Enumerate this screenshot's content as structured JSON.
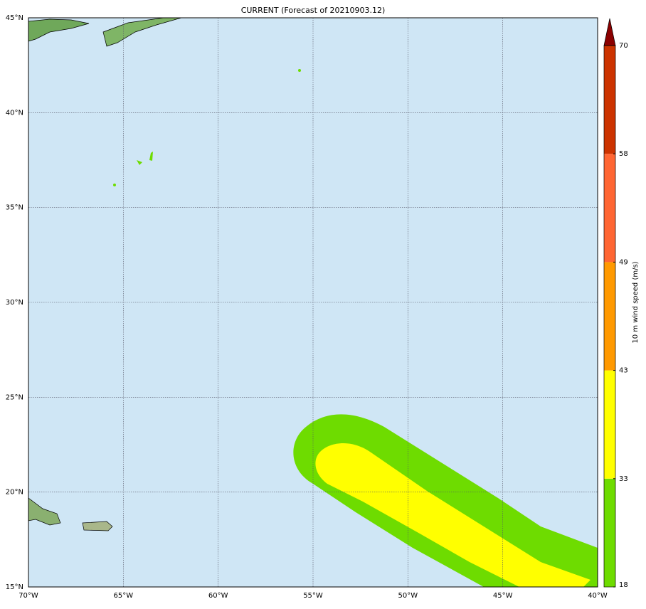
{
  "title": "CURRENT (Forecast of 20210903.12)",
  "map": {
    "lon_range": [
      -70,
      -40
    ],
    "lat_range": [
      15,
      45
    ],
    "lon_ticks": [
      {
        "value": -70,
        "label": "70°W"
      },
      {
        "value": -65,
        "label": "65°W"
      },
      {
        "value": -60,
        "label": "60°W"
      },
      {
        "value": -55,
        "label": "55°W"
      },
      {
        "value": -50,
        "label": "50°W"
      },
      {
        "value": -45,
        "label": "45°W"
      },
      {
        "value": -40,
        "label": "40°W"
      }
    ],
    "lat_ticks": [
      {
        "value": 15,
        "label": "15°N"
      },
      {
        "value": 20,
        "label": "20°N"
      },
      {
        "value": 25,
        "label": "25°N"
      },
      {
        "value": 30,
        "label": "30°N"
      },
      {
        "value": 35,
        "label": "35°N"
      },
      {
        "value": 40,
        "label": "40°N"
      },
      {
        "value": 45,
        "label": "45°N"
      }
    ]
  },
  "colorbar": {
    "label": "10 m wind speed (m/s)",
    "ticks": [
      18,
      33,
      43,
      49,
      58,
      70
    ],
    "colors": [
      "#6edc00",
      "#ffff00",
      "#ff9900",
      "#ff6633",
      "#cc3300"
    ],
    "extend_color": "#8b0000"
  }
}
